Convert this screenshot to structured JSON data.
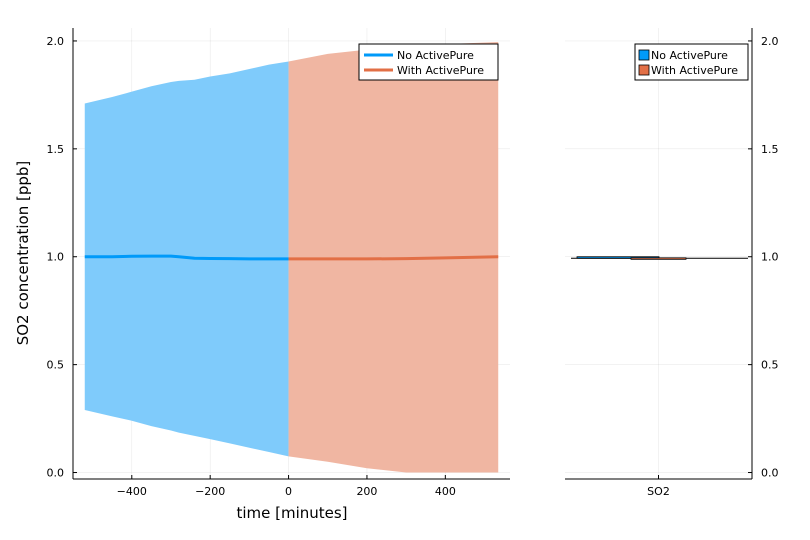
{
  "chart_data": [
    {
      "type": "line",
      "xlabel": "time [minutes]",
      "ylabel": "SO2 concentration [ppb]",
      "xlim": [
        -550,
        565
      ],
      "ylim": [
        -0.03,
        2.06
      ],
      "xticks": [
        -400,
        -200,
        0,
        200,
        400
      ],
      "xtick_labels": [
        "−400",
        "−200",
        "0",
        "200",
        "400"
      ],
      "yticks": [
        0.0,
        0.5,
        1.0,
        1.5,
        2.0
      ],
      "ytick_labels": [
        "0.0",
        "0.5",
        "1.0",
        "1.5",
        "2.0"
      ],
      "grid": true,
      "legend_position": "top-right",
      "series": [
        {
          "name": "No ActivePure",
          "color": "#009af9",
          "band_color": "#7fcbfb",
          "x": [
            -520,
            -450,
            -400,
            -350,
            -300,
            -280,
            -240,
            -200,
            -150,
            -100,
            -50,
            0
          ],
          "y": [
            1.0,
            1.0,
            1.002,
            1.003,
            1.003,
            1.0,
            0.993,
            0.992,
            0.991,
            0.99,
            0.99,
            0.99
          ],
          "upper": [
            1.71,
            1.74,
            1.765,
            1.79,
            1.81,
            1.815,
            1.82,
            1.835,
            1.85,
            1.87,
            1.89,
            1.905
          ],
          "lower": [
            0.29,
            0.26,
            0.24,
            0.215,
            0.195,
            0.185,
            0.17,
            0.155,
            0.135,
            0.115,
            0.095,
            0.075
          ]
        },
        {
          "name": "With ActivePure",
          "color": "#e26f46",
          "band_color": "#f0b6a2",
          "x": [
            0,
            100,
            200,
            300,
            400,
            535
          ],
          "y": [
            0.99,
            0.99,
            0.99,
            0.991,
            0.995,
            1.0
          ],
          "upper": [
            1.905,
            1.94,
            1.96,
            1.975,
            1.985,
            1.995
          ],
          "lower": [
            0.075,
            0.05,
            0.02,
            0.0,
            0.0,
            0.0
          ]
        }
      ]
    },
    {
      "type": "bar",
      "categories": [
        "SO2"
      ],
      "ylim": [
        -0.03,
        2.06
      ],
      "yticks": [
        0.0,
        0.5,
        1.0,
        1.5,
        2.0
      ],
      "ytick_labels": [
        "0.0",
        "0.5",
        "1.0",
        "1.5",
        "2.0"
      ],
      "grid": true,
      "legend_position": "top-right",
      "series": [
        {
          "name": "No ActivePure",
          "color": "#009af9",
          "values": [
            1.0
          ]
        },
        {
          "name": "With ActivePure",
          "color": "#e26f46",
          "values": [
            0.995
          ]
        }
      ]
    }
  ]
}
